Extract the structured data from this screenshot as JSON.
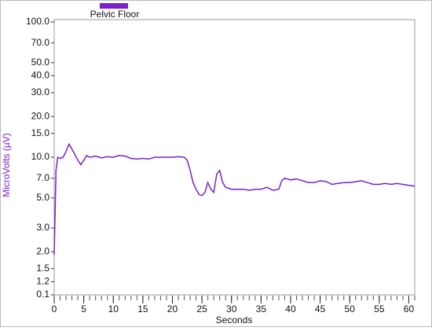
{
  "chart_data": {
    "type": "line",
    "legend_title": "Pelvic Floor",
    "x_label": "Seconds",
    "y_label": "MicroVolts (µV)",
    "y_scale": "log",
    "y_break": [
      0.1,
      1
    ],
    "xlim": [
      0,
      61
    ],
    "ylim": [
      0.1,
      100
    ],
    "xticks": [
      0,
      5,
      10,
      15,
      20,
      25,
      30,
      35,
      40,
      45,
      50,
      55,
      60
    ],
    "minor_xtick_step": 1,
    "yticks": [
      {
        "value": 0.1,
        "label": "0.1"
      },
      {
        "value": 1.2,
        "label": "1.2"
      },
      {
        "value": 1.5,
        "label": "1.5"
      },
      {
        "value": 2,
        "label": "2.0"
      },
      {
        "value": 3,
        "label": "3.0"
      },
      {
        "value": 5,
        "label": "5.0"
      },
      {
        "value": 7,
        "label": "7.0"
      },
      {
        "value": 10,
        "label": "10.0"
      },
      {
        "value": 15,
        "label": "15.0"
      },
      {
        "value": 20,
        "label": "20.0"
      },
      {
        "value": 30,
        "label": "30.0"
      },
      {
        "value": 40,
        "label": "40.0"
      },
      {
        "value": 50,
        "label": "50.0"
      },
      {
        "value": 70,
        "label": "70.0"
      },
      {
        "value": 100,
        "label": "100.0"
      }
    ],
    "series": [
      {
        "name": "Pelvic Floor",
        "color": "#7a22c8",
        "x": [
          0,
          0.3,
          0.6,
          1,
          1.5,
          2,
          2.5,
          3,
          3.5,
          4,
          4.5,
          5,
          5.5,
          6,
          7,
          8,
          9,
          10,
          11,
          12,
          13,
          14,
          15,
          16,
          17,
          18,
          19,
          20,
          21,
          22,
          22.5,
          23,
          23.5,
          24,
          24.5,
          25,
          25.5,
          26,
          26.5,
          27,
          27.5,
          28,
          28.5,
          29,
          30,
          31,
          32,
          33,
          34,
          35,
          36,
          37,
          38,
          38.5,
          39,
          40,
          41,
          42,
          43,
          44,
          45,
          46,
          47,
          48,
          49,
          50,
          51,
          52,
          53,
          54,
          55,
          56,
          57,
          58,
          59,
          60,
          61
        ],
        "values": [
          1.9,
          8,
          10,
          9.8,
          10,
          11,
          12.5,
          11.5,
          10.5,
          9.5,
          8.8,
          9.5,
          10.3,
          10,
          10.2,
          9.9,
          10.1,
          10,
          10.3,
          10.2,
          9.8,
          9.7,
          9.8,
          9.7,
          10,
          10,
          10,
          10,
          10.1,
          10,
          9.5,
          8,
          6.5,
          5.8,
          5.3,
          5.2,
          5.5,
          6.5,
          5.8,
          5.5,
          7.5,
          8,
          6.5,
          6,
          5.8,
          5.8,
          5.8,
          5.7,
          5.8,
          5.8,
          6,
          5.7,
          5.8,
          6.7,
          7,
          6.8,
          6.9,
          6.7,
          6.5,
          6.5,
          6.7,
          6.6,
          6.3,
          6.4,
          6.5,
          6.5,
          6.6,
          6.7,
          6.5,
          6.3,
          6.3,
          6.4,
          6.3,
          6.4,
          6.3,
          6.2,
          6.1
        ]
      }
    ]
  }
}
